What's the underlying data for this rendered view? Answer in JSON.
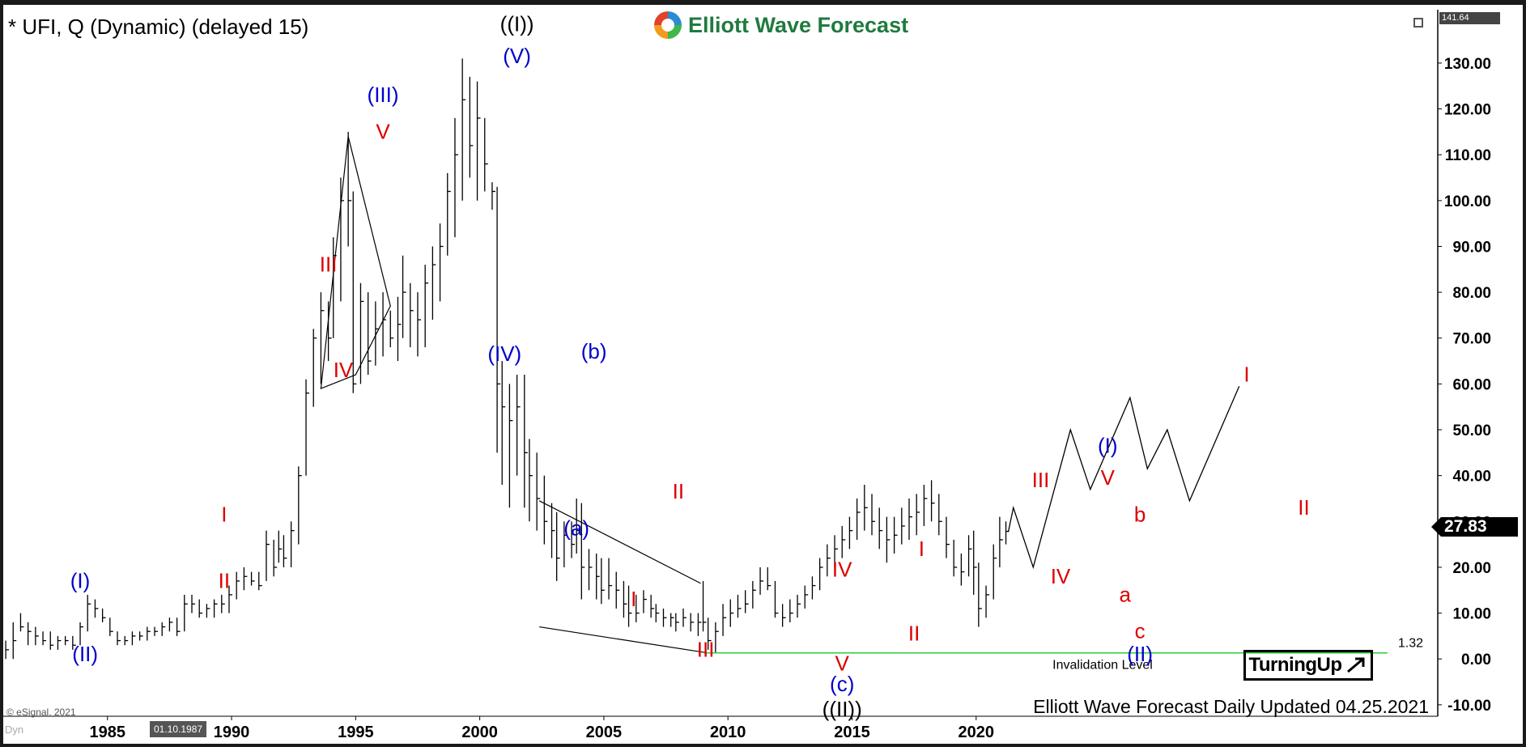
{
  "header": {
    "symbol_title": "* UFI, Q (Dynamic) (delayed 15)",
    "logo_text": "Elliott Wave Forecast"
  },
  "footer": {
    "update_note": "Elliott Wave Forecast Daily Updated 04.25.2021",
    "copyright": "© eSignal, 2021",
    "dyn_label": "Dyn",
    "cursor_date": "01.10.1987",
    "turning_up": "TurningUp"
  },
  "colors": {
    "blue": "#0000cc",
    "red": "#dd0000",
    "black": "#000000",
    "green": "#2ecc40"
  },
  "chart_data": {
    "type": "bar",
    "title": "* UFI, Q (Dynamic) (delayed 15)",
    "x_ticks": [
      "1985",
      "1990",
      "1995",
      "2000",
      "2005",
      "2010",
      "2015",
      "2020"
    ],
    "x_tick_values": [
      1985,
      1990,
      1995,
      2000,
      2005,
      2010,
      2015,
      2020
    ],
    "y_ticks": [
      "-10.00",
      "0.00",
      "10.00",
      "20.00",
      "30.00",
      "40.00",
      "50.00",
      "60.00",
      "70.00",
      "80.00",
      "90.00",
      "100.00",
      "110.00",
      "120.00",
      "130.00"
    ],
    "y_tick_values": [
      -10,
      0,
      10,
      20,
      30,
      40,
      50,
      60,
      70,
      80,
      90,
      100,
      110,
      120,
      130
    ],
    "xlim": [
      1980.8,
      2038.6
    ],
    "ylim": [
      -12.5,
      141.64
    ],
    "top_value_label": "141.64",
    "last_price": 27.83,
    "last_price_label": "27.83",
    "invalidation": {
      "value": 1.32,
      "label": "1.32",
      "text": "Invalidation Level",
      "x_start": 2009.1
    },
    "bars": [
      [
        1980.9,
        0,
        4,
        2
      ],
      [
        1981.2,
        0,
        8,
        4
      ],
      [
        1981.5,
        6,
        10,
        7
      ],
      [
        1981.8,
        3,
        8,
        6
      ],
      [
        1982.1,
        3,
        7,
        5
      ],
      [
        1982.4,
        3,
        6,
        4
      ],
      [
        1982.7,
        2,
        6,
        3
      ],
      [
        1983.0,
        2,
        5,
        4
      ],
      [
        1983.3,
        3,
        5,
        4
      ],
      [
        1983.6,
        2,
        5,
        3
      ],
      [
        1983.9,
        3,
        8,
        7
      ],
      [
        1984.2,
        6,
        14,
        12
      ],
      [
        1984.5,
        9,
        13,
        11
      ],
      [
        1984.8,
        8,
        11,
        9
      ],
      [
        1985.1,
        5,
        9,
        6
      ],
      [
        1985.4,
        3,
        6,
        4
      ],
      [
        1985.7,
        3,
        5,
        4
      ],
      [
        1986.0,
        3,
        6,
        5
      ],
      [
        1986.3,
        4,
        6,
        5
      ],
      [
        1986.6,
        4,
        7,
        6
      ],
      [
        1986.9,
        5,
        7,
        6
      ],
      [
        1987.2,
        5,
        8,
        7
      ],
      [
        1987.5,
        6,
        9,
        8
      ],
      [
        1987.8,
        5,
        9,
        6
      ],
      [
        1988.1,
        6,
        14,
        12
      ],
      [
        1988.4,
        10,
        14,
        12
      ],
      [
        1988.7,
        9,
        13,
        10
      ],
      [
        1989.0,
        9,
        12,
        11
      ],
      [
        1989.3,
        9,
        13,
        12
      ],
      [
        1989.6,
        10,
        14,
        12
      ],
      [
        1989.9,
        10,
        16,
        14
      ],
      [
        1990.2,
        13,
        19,
        17
      ],
      [
        1990.5,
        15,
        20,
        18
      ],
      [
        1990.8,
        16,
        19,
        17
      ],
      [
        1991.1,
        15,
        19,
        16
      ],
      [
        1991.4,
        17,
        28,
        25
      ],
      [
        1991.7,
        18,
        26,
        20
      ],
      [
        1991.9,
        21,
        28,
        24
      ],
      [
        1992.1,
        20,
        27,
        22
      ],
      [
        1992.4,
        20,
        30,
        28
      ],
      [
        1992.7,
        25,
        42,
        40
      ],
      [
        1993.0,
        40,
        61,
        58
      ],
      [
        1993.3,
        55,
        72,
        70
      ],
      [
        1993.6,
        60,
        80,
        76
      ],
      [
        1993.9,
        65,
        78,
        70
      ],
      [
        1994.1,
        70,
        92,
        88
      ],
      [
        1994.4,
        78,
        105,
        100
      ],
      [
        1994.7,
        90,
        115,
        100
      ],
      [
        1994.9,
        58,
        102,
        60
      ],
      [
        1995.2,
        60,
        82,
        78
      ],
      [
        1995.5,
        62,
        80,
        65
      ],
      [
        1995.8,
        64,
        78,
        72
      ],
      [
        1996.1,
        66,
        80,
        74
      ],
      [
        1996.4,
        68,
        76,
        70
      ],
      [
        1996.7,
        65,
        79,
        73
      ],
      [
        1996.9,
        70,
        88,
        80
      ],
      [
        1997.2,
        68,
        82,
        76
      ],
      [
        1997.5,
        66,
        80,
        74
      ],
      [
        1997.8,
        68,
        86,
        82
      ],
      [
        1998.1,
        74,
        90,
        86
      ],
      [
        1998.4,
        78,
        95,
        90
      ],
      [
        1998.7,
        88,
        106,
        102
      ],
      [
        1999.0,
        92,
        118,
        110
      ],
      [
        1999.3,
        100,
        131,
        122
      ],
      [
        1999.6,
        105,
        127,
        112
      ],
      [
        1999.9,
        100,
        126,
        118
      ],
      [
        2000.2,
        102,
        118,
        108
      ],
      [
        2000.5,
        98,
        104,
        102
      ],
      [
        2000.7,
        45,
        103,
        60
      ],
      [
        2000.9,
        38,
        65,
        55
      ],
      [
        2001.2,
        33,
        60,
        52
      ],
      [
        2001.5,
        40,
        62,
        55
      ],
      [
        2001.8,
        33,
        62,
        45
      ],
      [
        2002.0,
        30,
        48,
        40
      ],
      [
        2002.3,
        28,
        45,
        35
      ],
      [
        2002.6,
        25,
        40,
        30
      ],
      [
        2002.9,
        22,
        34,
        28
      ],
      [
        2003.1,
        17,
        32,
        22
      ],
      [
        2003.4,
        20,
        30,
        27
      ],
      [
        2003.7,
        22,
        30,
        25
      ],
      [
        2003.9,
        23,
        35,
        28
      ],
      [
        2004.1,
        13,
        34,
        20
      ],
      [
        2004.4,
        15,
        24,
        20
      ],
      [
        2004.7,
        13,
        23,
        18
      ],
      [
        2004.9,
        12,
        22,
        15
      ],
      [
        2005.2,
        13,
        22,
        16
      ],
      [
        2005.5,
        11,
        19,
        15
      ],
      [
        2005.8,
        9,
        17,
        12
      ],
      [
        2006.0,
        7,
        16,
        10
      ],
      [
        2006.3,
        8,
        14,
        10
      ],
      [
        2006.6,
        10,
        15,
        13
      ],
      [
        2006.9,
        9,
        14,
        11
      ],
      [
        2007.1,
        8,
        12,
        10
      ],
      [
        2007.4,
        7,
        11,
        9
      ],
      [
        2007.7,
        7,
        10,
        9
      ],
      [
        2007.9,
        6,
        10,
        8
      ],
      [
        2008.2,
        7,
        11,
        9
      ],
      [
        2008.5,
        6,
        10,
        8
      ],
      [
        2008.8,
        5,
        10,
        8
      ],
      [
        2009.0,
        6,
        17,
        8
      ],
      [
        2009.2,
        2,
        9,
        4
      ],
      [
        2009.5,
        1.3,
        8,
        6
      ],
      [
        2009.8,
        5,
        12,
        9
      ],
      [
        2010.1,
        7,
        13,
        10
      ],
      [
        2010.4,
        9,
        14,
        11
      ],
      [
        2010.7,
        10,
        15,
        12
      ],
      [
        2011.0,
        11,
        17,
        15
      ],
      [
        2011.3,
        14,
        20,
        17
      ],
      [
        2011.6,
        15,
        20,
        16
      ],
      [
        2011.9,
        9,
        17,
        10
      ],
      [
        2012.2,
        7,
        12,
        9
      ],
      [
        2012.5,
        8,
        13,
        10
      ],
      [
        2012.8,
        9,
        14,
        12
      ],
      [
        2013.1,
        11,
        16,
        14
      ],
      [
        2013.4,
        13,
        18,
        16
      ],
      [
        2013.7,
        15,
        22,
        20
      ],
      [
        2014.0,
        18,
        25,
        22
      ],
      [
        2014.3,
        20,
        27,
        24
      ],
      [
        2014.6,
        22,
        29,
        26
      ],
      [
        2014.9,
        24,
        31,
        28
      ],
      [
        2015.2,
        26,
        35,
        32
      ],
      [
        2015.5,
        28,
        38,
        33
      ],
      [
        2015.8,
        27,
        36,
        30
      ],
      [
        2016.1,
        24,
        33,
        28
      ],
      [
        2016.4,
        21,
        31,
        26
      ],
      [
        2016.7,
        23,
        31,
        27
      ],
      [
        2017.0,
        25,
        33,
        29
      ],
      [
        2017.3,
        26,
        35,
        31
      ],
      [
        2017.6,
        27,
        36,
        32
      ],
      [
        2017.9,
        29,
        38,
        35
      ],
      [
        2018.2,
        30,
        39,
        34
      ],
      [
        2018.5,
        27,
        36,
        30
      ],
      [
        2018.8,
        22,
        31,
        25
      ],
      [
        2019.1,
        18,
        26,
        20
      ],
      [
        2019.4,
        16,
        23,
        19
      ],
      [
        2019.7,
        18,
        27,
        24
      ],
      [
        2019.9,
        14,
        28,
        20
      ],
      [
        2020.1,
        7,
        21,
        11
      ],
      [
        2020.4,
        9,
        16,
        14
      ],
      [
        2020.7,
        13,
        25,
        22
      ],
      [
        2020.95,
        20,
        31,
        26
      ],
      [
        2021.2,
        25,
        30,
        27.83
      ]
    ],
    "projection": [
      [
        2021.3,
        27.83
      ],
      [
        2021.5,
        33
      ],
      [
        2022.3,
        20
      ],
      [
        2023.8,
        50
      ],
      [
        2024.6,
        37
      ],
      [
        2026.2,
        57
      ],
      [
        2026.9,
        41.5
      ],
      [
        2027.7,
        50
      ],
      [
        2028.6,
        34.5
      ],
      [
        2030.6,
        59.5
      ]
    ],
    "wave_lines": [
      [
        [
          1994.7,
          114
        ],
        [
          1996.4,
          77
        ],
        [
          1995.0,
          62
        ],
        [
          1993.6,
          59
        ],
        [
          1994.7,
          114
        ]
      ],
      [
        [
          2002.4,
          34.5
        ],
        [
          2008.9,
          16.5
        ]
      ],
      [
        [
          2002.4,
          7
        ],
        [
          2009.2,
          1.3
        ]
      ]
    ],
    "labels": [
      {
        "text": "(I)",
        "x": 1983.9,
        "y": 15.5,
        "color": "blue"
      },
      {
        "text": "(II)",
        "x": 1984.1,
        "y": -0.5,
        "color": "blue"
      },
      {
        "text": "I",
        "x": 1989.7,
        "y": 30,
        "color": "red"
      },
      {
        "text": "II",
        "x": 1989.7,
        "y": 15.5,
        "color": "red"
      },
      {
        "text": "III",
        "x": 1993.9,
        "y": 84.5,
        "color": "red"
      },
      {
        "text": "IV",
        "x": 1994.5,
        "y": 61.5,
        "color": "red"
      },
      {
        "text": "(III)",
        "x": 1996.1,
        "y": 121.5,
        "color": "blue"
      },
      {
        "text": "V",
        "x": 1996.1,
        "y": 113.5,
        "color": "red"
      },
      {
        "text": "(IV)",
        "x": 2001.0,
        "y": 65,
        "color": "blue"
      },
      {
        "text": "((I))",
        "x": 2001.5,
        "y": 137,
        "color": "black"
      },
      {
        "text": "(V)",
        "x": 2001.5,
        "y": 130,
        "color": "blue"
      },
      {
        "text": "(b)",
        "x": 2004.6,
        "y": 65.5,
        "color": "blue"
      },
      {
        "text": "(a)",
        "x": 2003.9,
        "y": 27,
        "color": "blue"
      },
      {
        "text": "I",
        "x": 2006.2,
        "y": 11.5,
        "color": "red"
      },
      {
        "text": "II",
        "x": 2008.0,
        "y": 35,
        "color": "red"
      },
      {
        "text": "III",
        "x": 2009.1,
        "y": 0.5,
        "color": "red"
      },
      {
        "text": "IV",
        "x": 2014.6,
        "y": 18,
        "color": "red"
      },
      {
        "text": "V",
        "x": 2014.6,
        "y": -2.5,
        "color": "red"
      },
      {
        "text": "(c)",
        "x": 2014.6,
        "y": -7,
        "color": "blue"
      },
      {
        "text": "((II))",
        "x": 2014.6,
        "y": -12.5,
        "color": "black"
      },
      {
        "text": "I",
        "x": 2017.8,
        "y": 22.5,
        "color": "red"
      },
      {
        "text": "II",
        "x": 2017.5,
        "y": 4,
        "color": "red"
      },
      {
        "text": "III",
        "x": 2022.6,
        "y": 37.5,
        "color": "red"
      },
      {
        "text": "IV",
        "x": 2023.4,
        "y": 16.5,
        "color": "red"
      },
      {
        "text": "(I)",
        "x": 2025.3,
        "y": 45,
        "color": "blue"
      },
      {
        "text": "V",
        "x": 2025.3,
        "y": 38,
        "color": "red"
      },
      {
        "text": "b",
        "x": 2026.6,
        "y": 30,
        "color": "red"
      },
      {
        "text": "a",
        "x": 2026.0,
        "y": 12.5,
        "color": "red"
      },
      {
        "text": "c",
        "x": 2026.6,
        "y": 4.5,
        "color": "red"
      },
      {
        "text": "(II)",
        "x": 2026.6,
        "y": -0.5,
        "color": "blue"
      },
      {
        "text": "I",
        "x": 2030.9,
        "y": 60.5,
        "color": "red"
      },
      {
        "text": "II",
        "x": 2033.2,
        "y": 31.5,
        "color": "red"
      }
    ]
  }
}
